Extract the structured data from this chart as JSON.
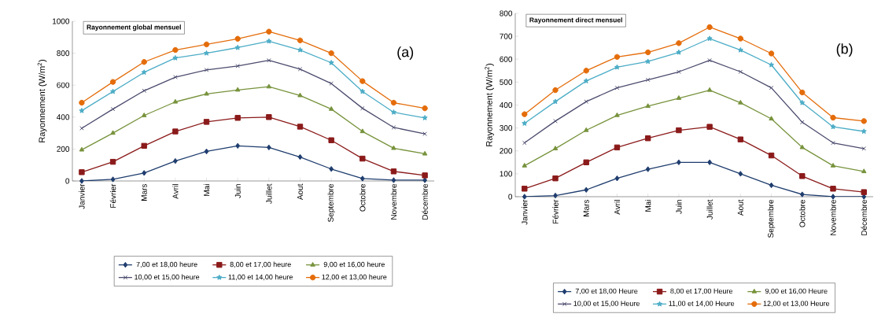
{
  "chart_data": [
    {
      "type": "line",
      "title": "Rayonnement global mensuel",
      "ylabel": "Rayonnement (W/m$^{2}$)",
      "annotations": [
        "(a)"
      ],
      "categories": [
        "Janvier",
        "Février",
        "Mars",
        "Avril",
        "Mai",
        "Juin",
        "Juillet",
        "Aout",
        "Septembre",
        "Octobre",
        "Novembre",
        "Décembre"
      ],
      "ylim": [
        0,
        1000
      ],
      "yticks": [
        0,
        200,
        400,
        600,
        800,
        1000
      ],
      "legend": "bottom",
      "grid": false,
      "series": [
        {
          "name": "7,00 et 18,00 heure",
          "color": "#1f3d6e",
          "marker": "diamond",
          "values": [
            0,
            10,
            50,
            125,
            185,
            220,
            210,
            150,
            75,
            15,
            5,
            5
          ]
        },
        {
          "name": "8,00 et 17,00 heure",
          "color": "#8b1a1a",
          "marker": "square",
          "values": [
            55,
            120,
            220,
            310,
            370,
            395,
            400,
            340,
            255,
            140,
            60,
            35
          ]
        },
        {
          "name": "9,00 et 16,00 heure",
          "color": "#77933c",
          "marker": "triangle",
          "values": [
            195,
            300,
            410,
            495,
            545,
            570,
            590,
            535,
            450,
            310,
            205,
            170
          ]
        },
        {
          "name": "10,00 et 15,00 heure",
          "color": "#4b4b6e",
          "marker": "cross",
          "values": [
            330,
            450,
            565,
            650,
            695,
            720,
            755,
            700,
            610,
            455,
            335,
            295
          ]
        },
        {
          "name": "11,00 et 14,00 heure",
          "color": "#4bacc6",
          "marker": "star",
          "values": [
            440,
            560,
            680,
            770,
            800,
            835,
            875,
            820,
            740,
            560,
            430,
            395
          ]
        },
        {
          "name": "12,00 et 13,00 heure",
          "color": "#e46c0a",
          "marker": "circle",
          "values": [
            490,
            620,
            745,
            820,
            855,
            890,
            935,
            880,
            800,
            625,
            490,
            455
          ]
        }
      ]
    },
    {
      "type": "line",
      "title": "Rayonnement direct mensuel",
      "ylabel": "Rayonnement (W/m$^{2}$)",
      "annotations": [
        "(b)"
      ],
      "categories": [
        "Janvier",
        "Février",
        "Mars",
        "Avril",
        "Mai",
        "Juin",
        "Juillet",
        "Aout",
        "Septembre",
        "Octobre",
        "Novembre",
        "Décembre"
      ],
      "ylim": [
        0,
        800
      ],
      "yticks": [
        0,
        100,
        200,
        300,
        400,
        500,
        600,
        700,
        800
      ],
      "legend": "bottom",
      "grid": false,
      "series": [
        {
          "name": "7,00 et 18,00 Heure",
          "color": "#1f3d6e",
          "marker": "diamond",
          "values": [
            0,
            5,
            30,
            80,
            120,
            150,
            150,
            100,
            50,
            10,
            0,
            0
          ]
        },
        {
          "name": "8,00 et 17,00 Heure",
          "color": "#8b1a1a",
          "marker": "square",
          "values": [
            35,
            80,
            150,
            215,
            255,
            290,
            305,
            250,
            180,
            90,
            35,
            20
          ]
        },
        {
          "name": "9,00 et 16,00 Heure",
          "color": "#77933c",
          "marker": "triangle",
          "values": [
            135,
            210,
            290,
            355,
            395,
            430,
            465,
            410,
            340,
            215,
            135,
            110
          ]
        },
        {
          "name": "10,00 et 15,00 Heure",
          "color": "#4b4b6e",
          "marker": "cross",
          "values": [
            235,
            330,
            415,
            475,
            510,
            545,
            595,
            545,
            475,
            325,
            235,
            210
          ]
        },
        {
          "name": "11,00 et 14,00 Heure",
          "color": "#4bacc6",
          "marker": "star",
          "values": [
            320,
            415,
            505,
            565,
            590,
            630,
            690,
            640,
            575,
            410,
            305,
            285
          ]
        },
        {
          "name": "12,00 et 13,00 Heure",
          "color": "#e46c0a",
          "marker": "circle",
          "values": [
            360,
            465,
            550,
            610,
            630,
            670,
            740,
            690,
            625,
            455,
            345,
            330
          ]
        }
      ]
    }
  ]
}
